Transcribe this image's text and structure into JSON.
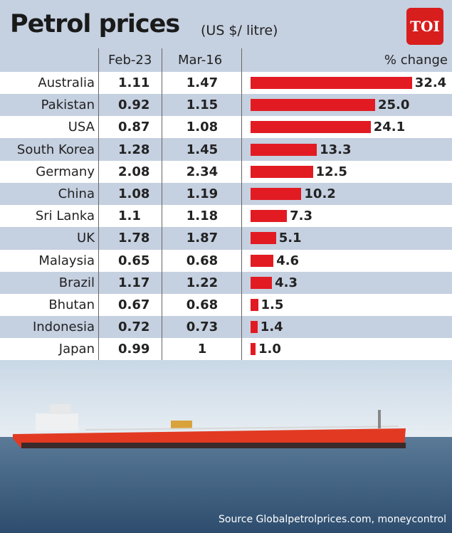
{
  "title": "Petrol prices",
  "subtitle": "(US $/ litre)",
  "logo": "TOI",
  "source": "Source Globalpetrolprices.com, moneycontrol",
  "colors": {
    "bar": "#e21b23",
    "background": "#c5d0e0",
    "logo": "#d81d1d"
  },
  "chart_data": {
    "type": "table",
    "columns": [
      "Feb-23",
      "Mar-16",
      "% change"
    ],
    "categories": [
      "Australia",
      "Pakistan",
      "USA",
      "South Korea",
      "Germany",
      "China",
      "Sri Lanka",
      "UK",
      "Malaysia",
      "Brazil",
      "Bhutan",
      "Indonesia",
      "Japan"
    ],
    "feb23": [
      "1.11",
      "0.92",
      "0.87",
      "1.28",
      "2.08",
      "1.08",
      "1.1",
      "1.78",
      "0.65",
      "1.17",
      "0.67",
      "0.72",
      "0.99"
    ],
    "mar16": [
      "1.47",
      "1.15",
      "1.08",
      "1.45",
      "2.34",
      "1.19",
      "1.18",
      "1.87",
      "0.68",
      "1.22",
      "0.68",
      "0.73",
      "1"
    ],
    "pct_change": [
      "32.4",
      "25.0",
      "24.1",
      "13.3",
      "12.5",
      "10.2",
      "7.3",
      "5.1",
      "4.6",
      "4.3",
      "1.5",
      "1.4",
      "1.0"
    ]
  }
}
